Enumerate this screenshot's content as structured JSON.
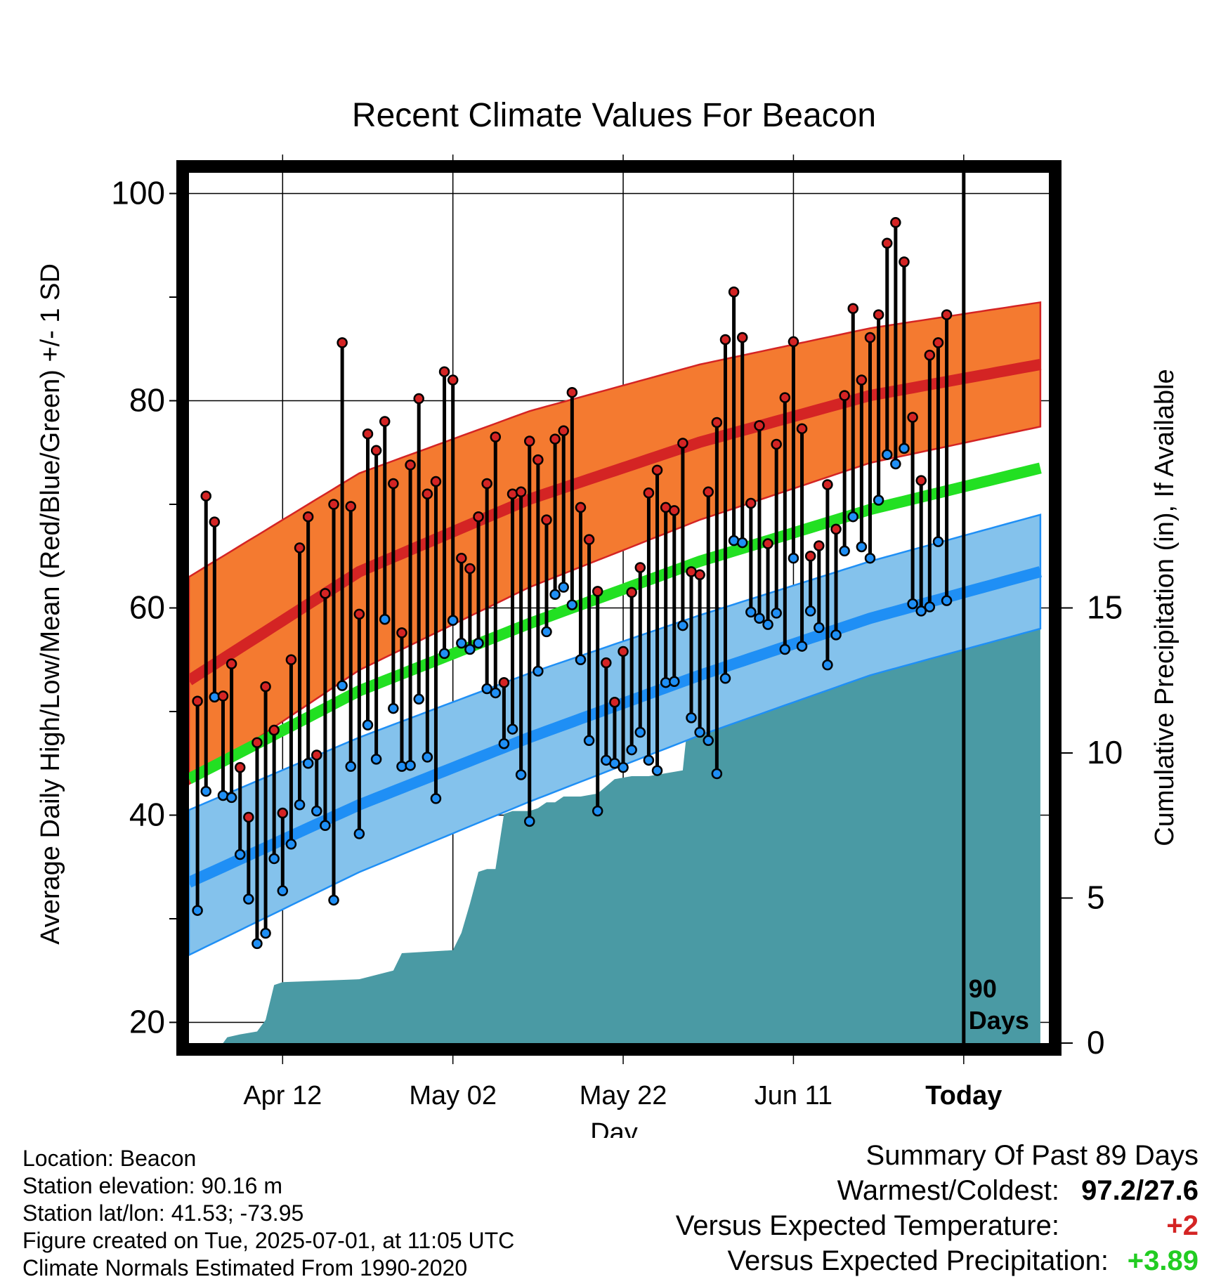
{
  "chart_data": {
    "type": "line",
    "title": "Recent Climate Values For Beacon",
    "xlabel": "Day",
    "ylabel": "Average Daily High/Low/Mean (Red/Blue/Green) +/- 1 SD",
    "y2label": "Cumulative Precipitation (in), If Available",
    "x_tick_labels": [
      "Apr 12",
      "May 02",
      "May 22",
      "Jun 11",
      "Today"
    ],
    "x_tick_days": [
      11,
      31,
      51,
      71,
      91
    ],
    "ylim": [
      18,
      102
    ],
    "y_ticks": [
      20,
      40,
      60,
      80,
      100
    ],
    "y2lim": [
      0,
      30
    ],
    "y2_ticks": [
      0,
      5,
      10,
      15
    ],
    "xlim": [
      0,
      101
    ],
    "today_day": 91,
    "today_label": [
      "90",
      "Days"
    ],
    "grid": true,
    "colors": {
      "high": "#d42424",
      "high_band": "#f47a30",
      "low": "#1f8ff5",
      "low_band": "#84c2ec",
      "mean": "#22e022",
      "precip": "#4a9aa4",
      "axis": "#000000"
    },
    "normals_days": [
      0,
      20,
      40,
      60,
      80,
      100
    ],
    "normal_high": [
      53,
      63.5,
      70.5,
      76,
      80.5,
      83.5
    ],
    "normal_high_sd": [
      10,
      9.5,
      8.5,
      7.5,
      6.5,
      6
    ],
    "normal_low": [
      33.5,
      41,
      47.5,
      53.5,
      59,
      63.5
    ],
    "normal_low_sd": [
      7,
      6.5,
      6.2,
      5.8,
      5.5,
      5.5
    ],
    "normal_mean": [
      43.5,
      52,
      58.5,
      64.5,
      69.5,
      73.5
    ],
    "daily_high": [
      51,
      70.8,
      68.3,
      51.5,
      54.6,
      44.6,
      39.8,
      47,
      52.4,
      48.2,
      40.2,
      55,
      65.8,
      68.8,
      45.8,
      61.4,
      70,
      85.6,
      69.8,
      59.4,
      76.8,
      75.2,
      78,
      72,
      57.6,
      73.8,
      80.2,
      71,
      72.2,
      82.8,
      82,
      64.8,
      63.8,
      68.8,
      72,
      76.5,
      52.8,
      71,
      71.2,
      76.1,
      74.3,
      68.5,
      76.3,
      77.1,
      80.8,
      69.7,
      66.6,
      61.6,
      54.7,
      50.9,
      55.8,
      61.5,
      63.9,
      71.1,
      73.3,
      69.7,
      69.4,
      75.9,
      63.5,
      63.2,
      71.2,
      77.9,
      85.9,
      90.5,
      86.1,
      70.1,
      77.6,
      66.2,
      75.8,
      80.3,
      85.7,
      77.3,
      65,
      66,
      71.9,
      67.6,
      80.5,
      88.9,
      82,
      86.1,
      88.3,
      95.2,
      97.2,
      93.4,
      78.4,
      72.3,
      84.4,
      85.6,
      88.3
    ],
    "daily_low": [
      30.8,
      42.3,
      51.4,
      41.9,
      41.7,
      36.2,
      31.9,
      27.6,
      28.6,
      35.8,
      32.7,
      37.2,
      41,
      45,
      40.4,
      39,
      31.8,
      52.5,
      44.7,
      38.2,
      48.7,
      45.4,
      58.9,
      50.3,
      44.7,
      44.8,
      51.2,
      45.6,
      41.6,
      55.6,
      58.8,
      56.6,
      56,
      56.6,
      52.2,
      51.8,
      46.9,
      48.3,
      43.9,
      39.4,
      53.9,
      57.7,
      61.3,
      62,
      60.3,
      55,
      47.2,
      40.4,
      45.3,
      45,
      44.6,
      46.3,
      48,
      45.3,
      44.3,
      52.8,
      52.9,
      58.3,
      49.4,
      48,
      47.2,
      44,
      53.2,
      66.5,
      66.3,
      59.6,
      59,
      58.4,
      59.5,
      56,
      64.8,
      56.3,
      59.7,
      58.1,
      54.5,
      57.4,
      65.5,
      68.8,
      65.9,
      64.8,
      70.4,
      74.8,
      73.9,
      75.4,
      60.4,
      59.7,
      60.1,
      66.4,
      60.7
    ],
    "precip_days": [
      0,
      4,
      4.5,
      6,
      8,
      9,
      10,
      11,
      20,
      24,
      25,
      31,
      32,
      33,
      34,
      35,
      36,
      37,
      38,
      40,
      41,
      42,
      43,
      44,
      46,
      48,
      50,
      52,
      54,
      56,
      58,
      59,
      60,
      62,
      64,
      65,
      66,
      68,
      70,
      72,
      74,
      75,
      76,
      78,
      80,
      82,
      84,
      86,
      100
    ],
    "precip_values": [
      0,
      0,
      0.2,
      0.3,
      0.4,
      0.8,
      2,
      2.1,
      2.2,
      2.5,
      3.1,
      3.2,
      3.8,
      4.8,
      5.9,
      6,
      6,
      7.9,
      8,
      8,
      8.1,
      8.3,
      8.3,
      8.5,
      8.5,
      8.6,
      9.1,
      9.2,
      9.2,
      9.3,
      9.4,
      12.2,
      12.2,
      12.2,
      12.3,
      12.8,
      13.2,
      13.4,
      13.5,
      13.6,
      13.7,
      14.3,
      15.1,
      15.2,
      15.3,
      15.3,
      15.5,
      15.6,
      15.6
    ]
  },
  "info": {
    "location": "Location: Beacon",
    "elevation": "Station elevation: 90.16 m",
    "latlon": "Station lat/lon: 41.53; -73.95",
    "created": "Figure created on Tue, 2025-07-01, at 11:05 UTC",
    "normals": "Climate Normals Estimated From 1990-2020"
  },
  "summary": {
    "title": "Summary Of Past 89 Days",
    "warm_cold_label": "Warmest/Coldest:",
    "warm_cold_value": "97.2/27.6",
    "temp_label": "Versus Expected Temperature:",
    "temp_value": "+2",
    "temp_color": "#d42424",
    "precip_label": "Versus Expected Precipitation:",
    "precip_value": "+3.89",
    "precip_color": "#22cc22"
  }
}
